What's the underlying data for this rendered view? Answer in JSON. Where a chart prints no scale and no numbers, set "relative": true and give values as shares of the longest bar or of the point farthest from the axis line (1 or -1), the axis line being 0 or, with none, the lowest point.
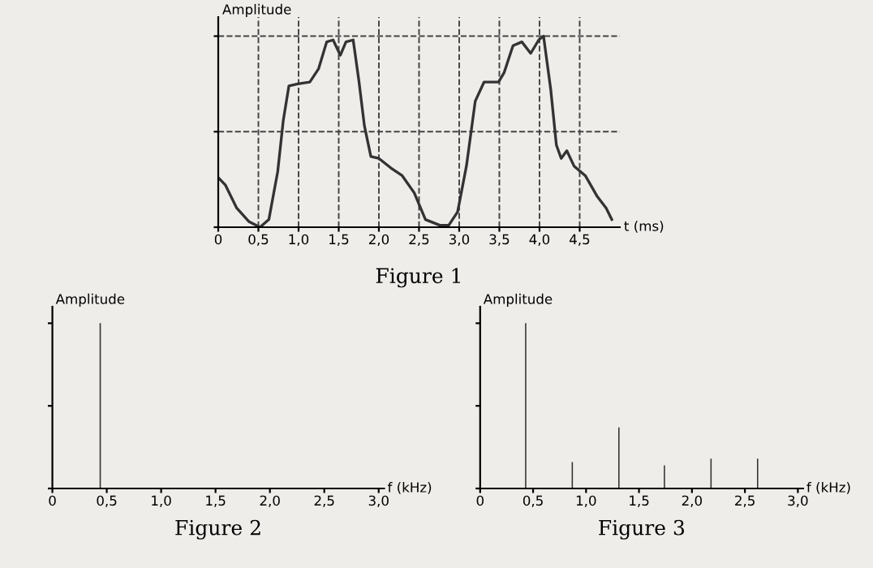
{
  "chart_data": [
    {
      "type": "line",
      "title": "Figure 1",
      "xlabel": "t (ms)",
      "ylabel": "Amplitude",
      "relative": true,
      "tick_labels": "x",
      "grid": true,
      "series": [
        {
          "color": "#333333",
          "x": [
            0,
            0.09,
            0.23,
            0.38,
            0.52,
            0.63,
            0.74,
            0.81,
            0.88,
            0.99,
            1.14,
            1.25,
            1.35,
            1.43,
            1.52,
            1.59,
            1.68,
            1.75,
            1.82,
            1.9,
            2.0,
            2.15,
            2.29,
            2.44,
            2.58,
            2.76,
            2.87,
            2.98,
            3.09,
            3.2,
            3.31,
            3.49,
            3.56,
            3.67,
            3.78,
            3.89,
            3.99,
            4.05,
            4.14,
            4.21,
            4.27,
            4.34,
            4.43,
            4.57,
            4.72,
            4.83,
            4.9
          ],
          "values": [
            0.26,
            0.22,
            0.1,
            0.03,
            0,
            0.04,
            0.29,
            0.56,
            0.74,
            0.75,
            0.76,
            0.83,
            0.97,
            0.98,
            0.9,
            0.97,
            0.98,
            0.77,
            0.53,
            0.37,
            0.36,
            0.31,
            0.27,
            0.18,
            0.04,
            0.01,
            0.01,
            0.08,
            0.32,
            0.66,
            0.76,
            0.76,
            0.81,
            0.95,
            0.97,
            0.91,
            0.98,
            1.0,
            0.72,
            0.43,
            0.36,
            0.4,
            0.32,
            0.27,
            0.16,
            0.1,
            0.04
          ]
        }
      ],
      "xlim": [
        0,
        5.0
      ],
      "xticks": [
        0,
        {
          "value": 0.5,
          "label": "0,5"
        },
        {
          "value": 1.0,
          "label": "1,0"
        },
        {
          "value": 1.5,
          "label": "1,5"
        },
        {
          "value": 2.0,
          "label": "2,0"
        },
        {
          "value": 2.5,
          "label": "2,5"
        },
        {
          "value": 3.0,
          "label": "3,0"
        },
        {
          "value": 3.5,
          "label": "3,5"
        },
        {
          "value": 4.0,
          "label": "4,0"
        },
        {
          "value": 4.5,
          "label": "4,5"
        }
      ]
    },
    {
      "type": "bar",
      "title": "Figure 2",
      "xlabel": "f (kHz)",
      "ylabel": "Amplitude",
      "relative": true,
      "tick_labels": "x",
      "series": [
        {
          "color": "#333333",
          "x": [
            0.44
          ],
          "values": [
            1
          ]
        }
      ],
      "xlim": [
        0,
        3.05
      ],
      "xticks": [
        0,
        {
          "value": 0.5,
          "label": "0,5"
        },
        {
          "value": 1.0,
          "label": "1,0"
        },
        {
          "value": 1.5,
          "label": "1,5"
        },
        {
          "value": 2.0,
          "label": "2,0"
        },
        {
          "value": 2.5,
          "label": "2,5"
        },
        {
          "value": 3.0,
          "label": "3,0"
        }
      ]
    },
    {
      "type": "bar",
      "title": "Figure 3",
      "xlabel": "f (kHz)",
      "ylabel": "Amplitude",
      "relative": true,
      "tick_labels": "x",
      "series": [
        {
          "color": "#333333",
          "x": [
            0.43,
            0.87,
            1.31,
            1.74,
            2.18,
            2.62
          ],
          "values": [
            1,
            0.16,
            0.37,
            0.14,
            0.18,
            0.18
          ]
        }
      ],
      "xlim": [
        0,
        3.05
      ],
      "xticks": [
        0,
        {
          "value": 0.5,
          "label": "0,5"
        },
        {
          "value": 1.0,
          "label": "1,0"
        },
        {
          "value": 1.5,
          "label": "1,5"
        },
        {
          "value": 2.0,
          "label": "2,0"
        },
        {
          "value": 2.5,
          "label": "2,5"
        },
        {
          "value": 3.0,
          "label": "3,0"
        }
      ]
    }
  ]
}
